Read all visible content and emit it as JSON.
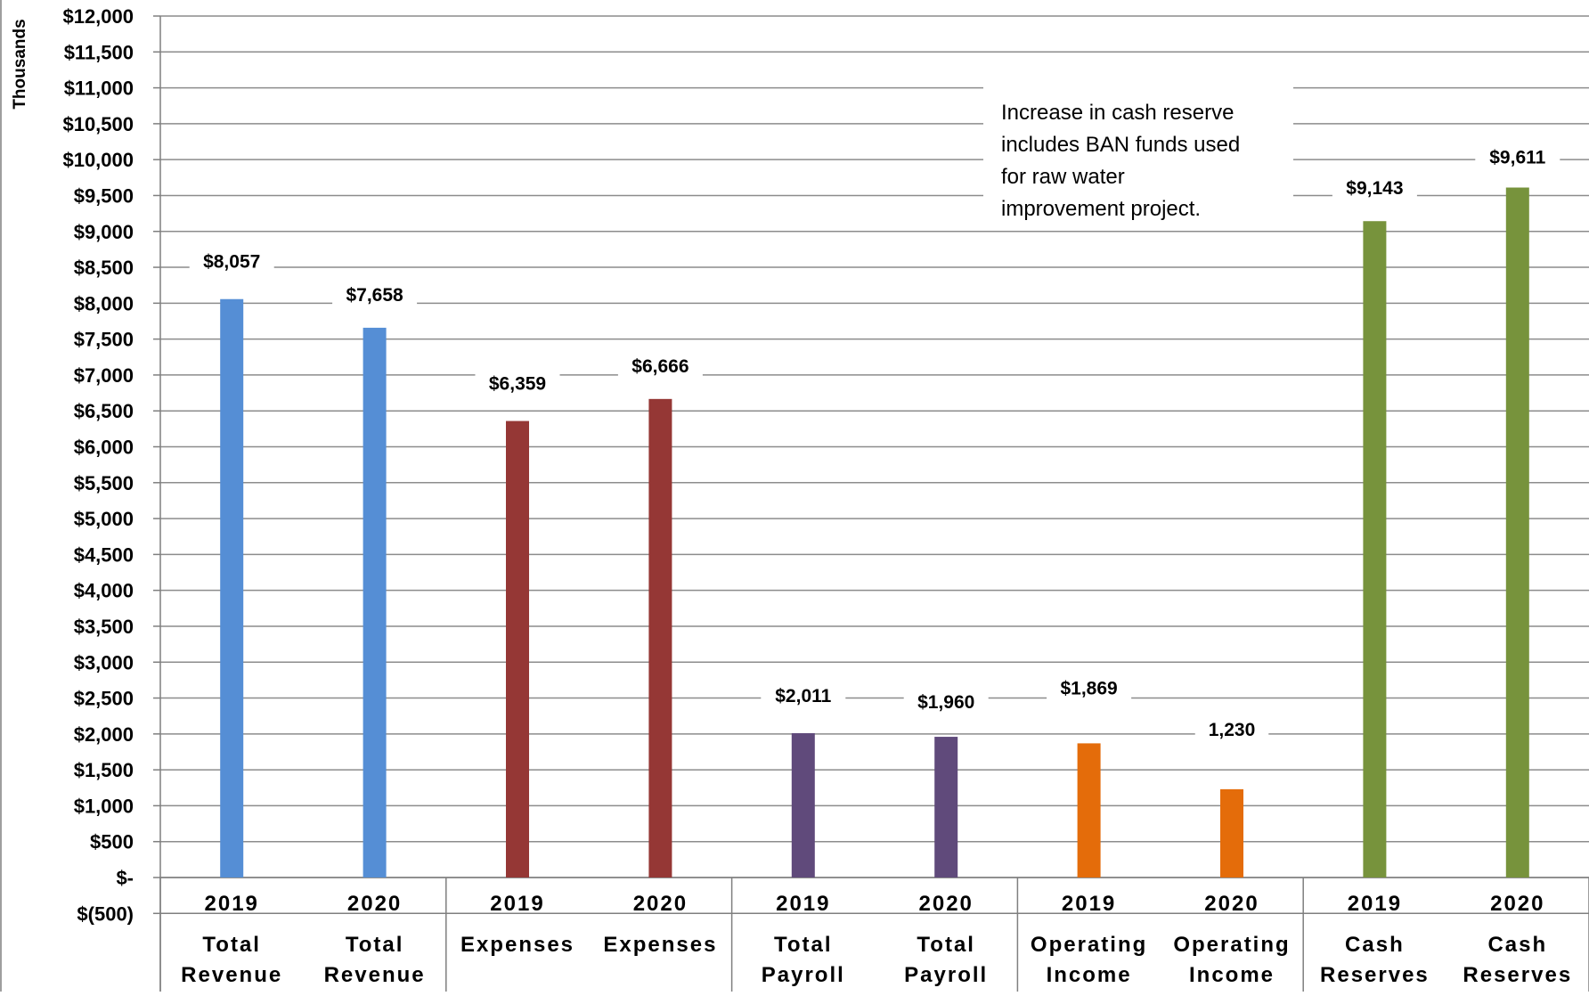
{
  "chart_data": {
    "type": "bar",
    "ylabel": "Thousands",
    "ylim": [
      -500,
      12000
    ],
    "ytick_step": 500,
    "ytick_labels": [
      "$(500)",
      "$-",
      "$500",
      "$1,000",
      "$1,500",
      "$2,000",
      "$2,500",
      "$3,000",
      "$3,500",
      "$4,000",
      "$4,500",
      "$5,000",
      "$5,500",
      "$6,000",
      "$6,500",
      "$7,000",
      "$7,500",
      "$8,000",
      "$8,500",
      "$9,000",
      "$9,500",
      "$10,000",
      "$10,500",
      "$11,000",
      "$11,500",
      "$12,000"
    ],
    "grid": true,
    "bars": [
      {
        "year": "2019",
        "category": [
          "Total",
          "Revenue"
        ],
        "value": 8057,
        "label": "$8,057",
        "color": "#558ED5"
      },
      {
        "year": "2020",
        "category": [
          "Total",
          "Revenue"
        ],
        "value": 7658,
        "label": "$7,658",
        "color": "#558ED5"
      },
      {
        "year": "2019",
        "category": [
          "Expenses"
        ],
        "value": 6359,
        "label": "$6,359",
        "color": "#953735"
      },
      {
        "year": "2020",
        "category": [
          "Expenses"
        ],
        "value": 6666,
        "label": "$6,666",
        "color": "#953735"
      },
      {
        "year": "2019",
        "category": [
          "Total",
          "Payroll"
        ],
        "value": 2011,
        "label": "$2,011",
        "color": "#604A7B"
      },
      {
        "year": "2020",
        "category": [
          "Total",
          "Payroll"
        ],
        "value": 1960,
        "label": "$1,960",
        "color": "#604A7B"
      },
      {
        "year": "2019",
        "category": [
          "Operating",
          "Income"
        ],
        "value": 1869,
        "label": "$1,869",
        "color": "#E46C0A"
      },
      {
        "year": "2020",
        "category": [
          "Operating",
          "Income"
        ],
        "value": 1230,
        "label": "1,230",
        "color": "#E46C0A"
      },
      {
        "year": "2019",
        "category": [
          "Cash",
          "Reserves"
        ],
        "value": 9143,
        "label": "$9,143",
        "color": "#77933C"
      },
      {
        "year": "2020",
        "category": [
          "Cash",
          "Reserves"
        ],
        "value": 9611,
        "label": "$9,611",
        "color": "#77933C"
      }
    ],
    "annotation": [
      "Increase in cash reserve",
      "includes BAN funds used",
      "for raw water",
      "improvement project."
    ]
  }
}
